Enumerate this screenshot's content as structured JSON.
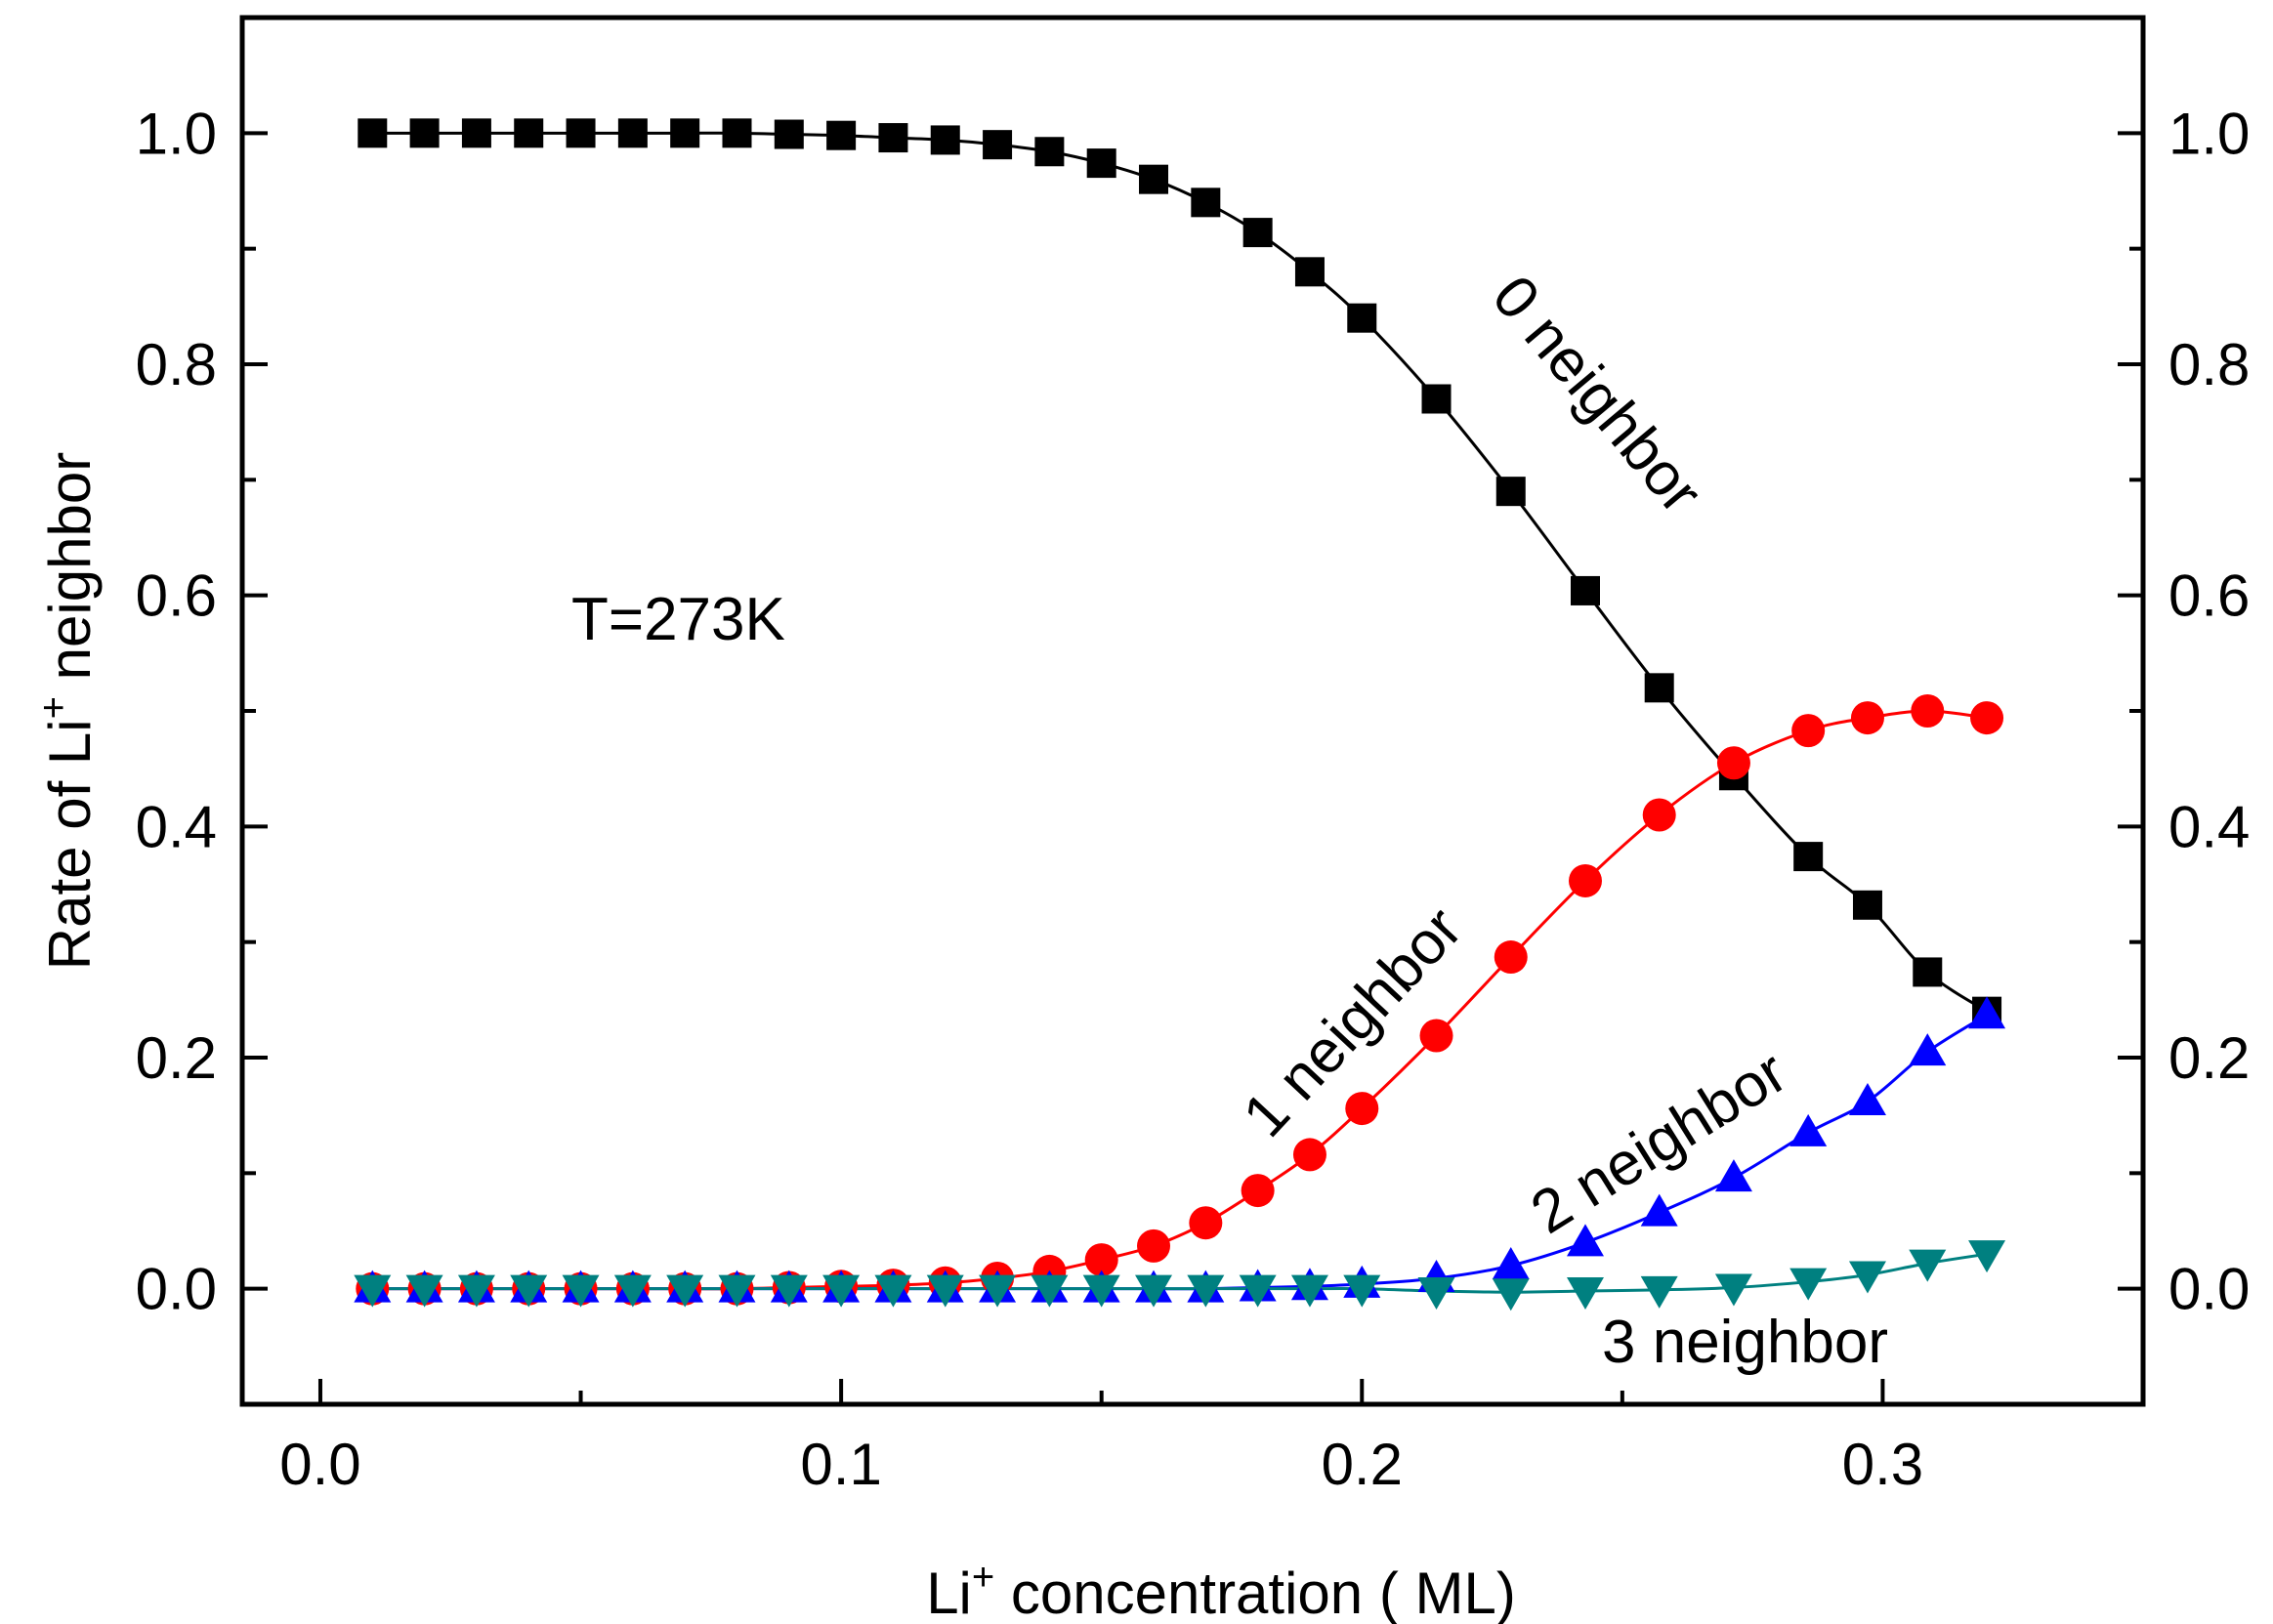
{
  "chart_data": {
    "type": "line",
    "title": "",
    "xlabel": {
      "prefix": "Li",
      "sup": "+",
      "suffix": " concentration ( ML)"
    },
    "ylabel": {
      "prefix": "Rate of Li",
      "sup": "+",
      "suffix": " neighbor"
    },
    "xlim": [
      -0.015,
      0.35
    ],
    "ylim": [
      -0.1,
      1.1
    ],
    "xticks": [
      "0.0",
      "0.1",
      "0.2",
      "0.3"
    ],
    "xtick_values": [
      0.0,
      0.1,
      0.2,
      0.3
    ],
    "yticks": [
      "0.0",
      "0.2",
      "0.4",
      "0.6",
      "0.8",
      "1.0"
    ],
    "ytick_values": [
      0.0,
      0.2,
      0.4,
      0.6,
      0.8,
      1.0
    ],
    "annotations": {
      "temperature": "T=273K",
      "n0": "0 neighbor",
      "n1": "1 neighbor",
      "n2": "2 neighbor",
      "n3": "3 neighbor"
    },
    "x": [
      0.01,
      0.02,
      0.03,
      0.04,
      0.05,
      0.06,
      0.07,
      0.08,
      0.09,
      0.1,
      0.11,
      0.12,
      0.13,
      0.14,
      0.15,
      0.16,
      0.17,
      0.18,
      0.19,
      0.2,
      0.2143,
      0.2286,
      0.2429,
      0.2571,
      0.2714,
      0.2857,
      0.2971,
      0.3086,
      0.32
    ],
    "series": [
      {
        "name": "0 neighbor",
        "marker": "square",
        "color": "#000000",
        "values": [
          1.0,
          1.0,
          1.0,
          1.0,
          1.0,
          1.0,
          1.0,
          1.0,
          0.999,
          0.998,
          0.996,
          0.994,
          0.99,
          0.984,
          0.974,
          0.96,
          0.94,
          0.914,
          0.88,
          0.84,
          0.77,
          0.69,
          0.604,
          0.52,
          0.444,
          0.374,
          0.332,
          0.274,
          0.24
        ]
      },
      {
        "name": "1 neighbor",
        "marker": "circle",
        "color": "#ff0000",
        "values": [
          0.0,
          0.0,
          0.0,
          0.0,
          0.0,
          0.0,
          0.0,
          0.0,
          0.001,
          0.002,
          0.003,
          0.005,
          0.009,
          0.015,
          0.025,
          0.037,
          0.057,
          0.085,
          0.116,
          0.156,
          0.219,
          0.287,
          0.353,
          0.41,
          0.455,
          0.483,
          0.494,
          0.5,
          0.494
        ]
      },
      {
        "name": "2 neighbor",
        "marker": "triangle-up",
        "color": "#0000ff",
        "values": [
          0.0,
          0.0,
          0.0,
          0.0,
          0.0,
          0.0,
          0.0,
          0.0,
          0.0,
          0.0,
          0.0,
          0.0,
          0.0,
          0.0,
          0.0,
          0.0,
          0.0,
          0.001,
          0.002,
          0.004,
          0.009,
          0.02,
          0.04,
          0.066,
          0.096,
          0.135,
          0.162,
          0.205,
          0.237
        ]
      },
      {
        "name": "3 neighbor",
        "marker": "triangle-down",
        "color": "#008080",
        "values": [
          0.0,
          0.0,
          0.0,
          0.0,
          0.0,
          0.0,
          0.0,
          0.0,
          0.0,
          0.0,
          0.0,
          0.0,
          0.0,
          0.0,
          0.0,
          0.0,
          0.0,
          0.0,
          0.0,
          0.0,
          -0.002,
          -0.003,
          -0.002,
          -0.001,
          0.001,
          0.006,
          0.012,
          0.022,
          0.03
        ]
      }
    ]
  }
}
